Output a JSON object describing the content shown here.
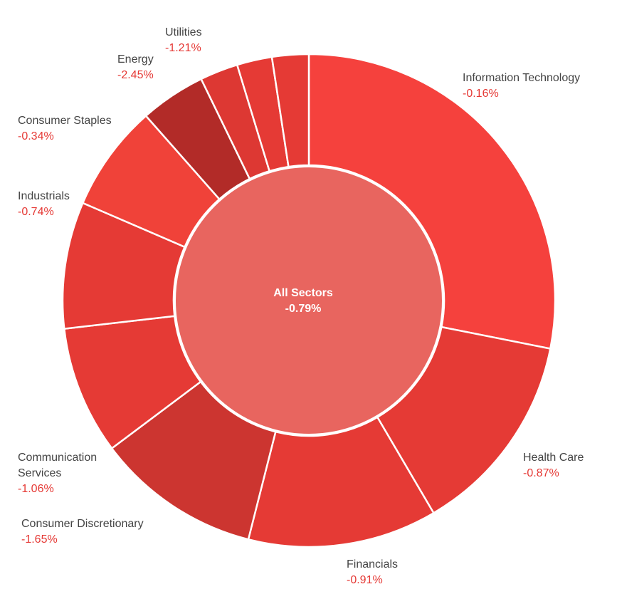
{
  "chart_data": {
    "type": "pie",
    "categories": [
      "Information Technology",
      "Health Care",
      "Financials",
      "Consumer Discretionary",
      "Communication Services",
      "Industrials",
      "Consumer Staples",
      "Energy",
      "Utilities",
      null,
      null
    ],
    "values": [
      28.1,
      13.4,
      12.4,
      10.8,
      8.4,
      8.3,
      7.0,
      4.3,
      2.5,
      2.3,
      2.4
    ],
    "changes": [
      "-0.16%",
      "-0.87%",
      "-0.91%",
      "-1.65%",
      "-1.06%",
      "-0.74%",
      "-0.34%",
      "-2.45%",
      "-1.21%",
      null,
      null
    ],
    "colors": [
      "#f5413d",
      "#e53a35",
      "#e53a35",
      "#cc3530",
      "#e53a35",
      "#e53a35",
      "#f04239",
      "#b22b28",
      "#dd3833",
      "#e53a35",
      "#e53a35"
    ],
    "center_label": "All Sectors",
    "center_value": "-0.79%",
    "center_color": "#e8655f"
  }
}
